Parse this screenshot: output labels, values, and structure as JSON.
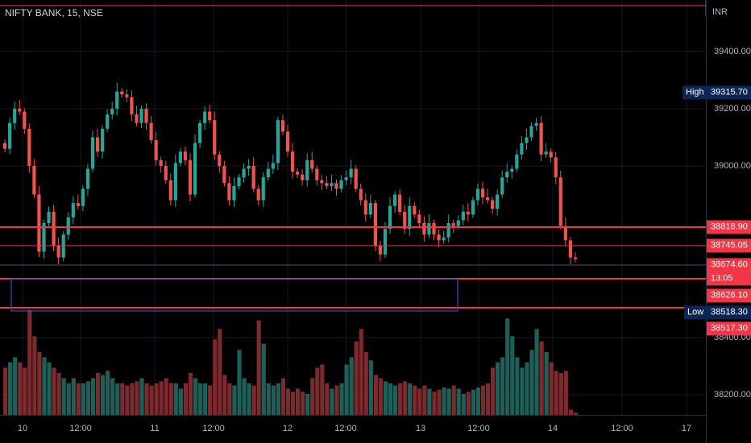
{
  "header": {
    "symbol": "NIFTY BANK, 15, NSE",
    "currency": "INR"
  },
  "colors": {
    "up": "#26a69a",
    "down": "#ef5350",
    "level": "#f23645",
    "zone": "#3f51b5",
    "label_red": "#f23645",
    "label_navy": "#0d2554"
  },
  "price_axis": {
    "ticks": [
      "39400.00",
      "39200.00",
      "39000.00",
      "38400.00",
      "38200.00"
    ]
  },
  "time_axis": {
    "ticks": [
      "10",
      "12:00",
      "11",
      "12:00",
      "12",
      "12:00",
      "13",
      "12:00",
      "14",
      "12:00",
      "17"
    ]
  },
  "tags": {
    "high": "High",
    "low": "Low"
  },
  "labels": {
    "high_value": "39315.70",
    "r1": "38818.90",
    "r2": "38745.05",
    "last": "38674.60",
    "countdown": "13:05",
    "s1": "38626.10",
    "low_value": "38518.30",
    "s2": "38517.30"
  },
  "chart_data": {
    "type": "candlestick",
    "title": "NIFTY BANK, 15, NSE",
    "ylim": [
      38130,
      39580
    ],
    "session_ticks": [
      "10",
      "12:00",
      "11",
      "12:00",
      "12",
      "12:00",
      "13",
      "12:00",
      "14",
      "12:00",
      "17"
    ],
    "horizontal_levels": [
      38818.9,
      38745.05,
      38626.1,
      38517.3
    ],
    "marked_high": 39315.7,
    "marked_low": 38518.3,
    "last_price": 38674.6,
    "support_zone": [
      38518.3,
      38626.1
    ],
    "candles_close": [
      39060,
      39150,
      39200,
      39190,
      39130,
      39000,
      38900,
      38700,
      38800,
      38840,
      38720,
      38680,
      38760,
      38820,
      38870,
      38860,
      38920,
      38990,
      39100,
      39050,
      39130,
      39180,
      39200,
      39260,
      39250,
      39240,
      39180,
      39150,
      39200,
      39150,
      39090,
      39020,
      39000,
      38950,
      38880,
      39010,
      39050,
      39020,
      38900,
      39080,
      39150,
      39190,
      39160,
      39040,
      39000,
      38940,
      38880,
      38930,
      38960,
      38990,
      39000,
      38920,
      38880,
      38960,
      38990,
      39010,
      39160,
      39120,
      39050,
      38980,
      38970,
      38950,
      39020,
      38990,
      38950,
      38940,
      38930,
      38940,
      38920,
      38950,
      38960,
      38990,
      38920,
      38880,
      38830,
      38870,
      38720,
      38690,
      38780,
      38860,
      38900,
      38840,
      38780,
      38860,
      38830,
      38800,
      38760,
      38800,
      38760,
      38740,
      38750,
      38800,
      38790,
      38810,
      38840,
      38830,
      38880,
      38920,
      38890,
      38880,
      38850,
      38900,
      38960,
      38980,
      38990,
      39040,
      39080,
      39100,
      39140,
      39150,
      39040,
      39050,
      39030,
      38960,
      38790,
      38740,
      38680,
      38674.6
    ],
    "volume_relative": [
      0.45,
      0.5,
      0.55,
      0.5,
      0.45,
      1.0,
      0.75,
      0.6,
      0.55,
      0.5,
      0.45,
      0.4,
      0.35,
      0.3,
      0.35,
      0.3,
      0.3,
      0.32,
      0.35,
      0.4,
      0.38,
      0.42,
      0.35,
      0.3,
      0.3,
      0.28,
      0.3,
      0.32,
      0.35,
      0.3,
      0.28,
      0.3,
      0.32,
      0.35,
      0.3,
      0.3,
      0.25,
      0.3,
      0.4,
      0.35,
      0.3,
      0.3,
      0.28,
      0.72,
      0.82,
      0.38,
      0.3,
      0.28,
      0.62,
      0.35,
      0.3,
      0.28,
      0.9,
      0.68,
      0.3,
      0.28,
      0.3,
      0.35,
      0.25,
      0.22,
      0.25,
      0.22,
      0.2,
      0.35,
      0.45,
      0.48,
      0.3,
      0.25,
      0.28,
      0.3,
      0.48,
      0.55,
      0.7,
      0.82,
      0.6,
      0.52,
      0.38,
      0.35,
      0.32,
      0.3,
      0.28,
      0.3,
      0.32,
      0.3,
      0.28,
      0.25,
      0.28,
      0.25,
      0.22,
      0.24,
      0.26,
      0.25,
      0.28,
      0.25,
      0.2,
      0.22,
      0.24,
      0.26,
      0.28,
      0.3,
      0.45,
      0.5,
      0.55,
      0.92,
      0.75,
      0.55,
      0.45,
      0.5,
      0.62,
      0.82,
      0.7,
      0.6,
      0.5,
      0.42,
      0.4,
      0.42,
      0.05,
      0.02
    ]
  }
}
